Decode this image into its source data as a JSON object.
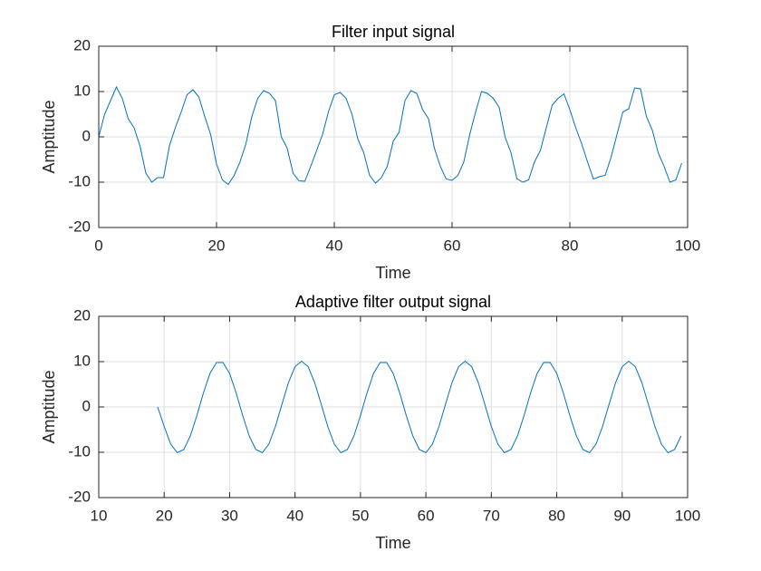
{
  "chart_data": [
    {
      "type": "line",
      "title": "Filter input signal",
      "xlabel": "Time",
      "ylabel": "Amptitude",
      "x": [
        0,
        1,
        2,
        3,
        4,
        5,
        6,
        7,
        8,
        9,
        10,
        11,
        12,
        13,
        14,
        15,
        16,
        17,
        18,
        19,
        20,
        21,
        22,
        23,
        24,
        25,
        26,
        27,
        28,
        29,
        30,
        31,
        32,
        33,
        34,
        35,
        36,
        37,
        38,
        39,
        40,
        41,
        42,
        43,
        44,
        45,
        46,
        47,
        48,
        49,
        50,
        51,
        52,
        53,
        54,
        55,
        56,
        57,
        58,
        59,
        60,
        61,
        62,
        63,
        64,
        65,
        66,
        67,
        68,
        69,
        70,
        71,
        72,
        73,
        74,
        75,
        76,
        77,
        78,
        79,
        80,
        81,
        82,
        83,
        84,
        85,
        86,
        87,
        88,
        89,
        90,
        91,
        92,
        93,
        94,
        95,
        96,
        97,
        98,
        99
      ],
      "series": [
        {
          "color": "#0072bd",
          "values": [
            0,
            5,
            8,
            11,
            8.5,
            4,
            2,
            -2,
            -8,
            -10,
            -9,
            -9,
            -2,
            2,
            5.5,
            9.3,
            10.4,
            8.8,
            4.5,
            0.5,
            -6,
            -9.5,
            -10.5,
            -8.5,
            -5.5,
            -1.5,
            4.5,
            8.5,
            10.2,
            9.6,
            8,
            0,
            -2.5,
            -8,
            -9.7,
            -9.8,
            -6.5,
            -3,
            0.5,
            5.5,
            9.3,
            9.8,
            8.5,
            5,
            -0.5,
            -3.5,
            -8.5,
            -10.2,
            -9,
            -6.5,
            -1,
            1,
            8,
            10.2,
            9.6,
            6,
            4,
            -2.5,
            -6.5,
            -9.3,
            -9.6,
            -8.5,
            -5.5,
            0.5,
            5.5,
            10,
            9.6,
            8.5,
            6.5,
            0,
            -3.5,
            -9.2,
            -10,
            -9.5,
            -5.5,
            -3,
            2,
            7,
            8.5,
            9.5,
            6,
            2,
            -1.5,
            -5.5,
            -9.3,
            -8.8,
            -8.5,
            -4.5,
            0.5,
            5.5,
            6.2,
            10.8,
            10.6,
            4.5,
            1.5,
            -3.5,
            -6.5,
            -10,
            -9.5,
            -5.8
          ]
        }
      ],
      "xlim": [
        0,
        100
      ],
      "ylim": [
        -20,
        20
      ],
      "xticks": [
        0,
        20,
        40,
        60,
        80,
        100
      ],
      "yticks": [
        -20,
        -10,
        0,
        10,
        20
      ],
      "grid": true
    },
    {
      "type": "line",
      "title": "Adaptive filter output signal",
      "xlabel": "Time",
      "ylabel": "Amptitude",
      "x": [
        19,
        20,
        21,
        22,
        23,
        24,
        25,
        26,
        27,
        28,
        29,
        30,
        31,
        32,
        33,
        34,
        35,
        36,
        37,
        38,
        39,
        40,
        41,
        42,
        43,
        44,
        45,
        46,
        47,
        48,
        49,
        50,
        51,
        52,
        53,
        54,
        55,
        56,
        57,
        58,
        59,
        60,
        61,
        62,
        63,
        64,
        65,
        66,
        67,
        68,
        69,
        70,
        71,
        72,
        73,
        74,
        75,
        76,
        77,
        78,
        79,
        80,
        81,
        82,
        83,
        84,
        85,
        86,
        87,
        88,
        89,
        90,
        91,
        92,
        93,
        94,
        95,
        96,
        97,
        98,
        99
      ],
      "series": [
        {
          "color": "#0072bd",
          "values": [
            0,
            -4.3,
            -8.2,
            -10.1,
            -9.4,
            -6.4,
            -1.9,
            3.1,
            7.4,
            9.8,
            9.8,
            7.4,
            3.1,
            -1.9,
            -6.4,
            -9.4,
            -10.1,
            -8.2,
            -4.3,
            0.6,
            5.4,
            8.9,
            10.1,
            8.9,
            5.4,
            0.6,
            -4.3,
            -8.2,
            -10.1,
            -9.4,
            -6.4,
            -1.9,
            3.1,
            7.4,
            9.8,
            9.8,
            7.4,
            3.1,
            -1.9,
            -6.4,
            -9.4,
            -10.1,
            -8.2,
            -4.3,
            0.6,
            5.4,
            8.9,
            10.1,
            8.9,
            5.4,
            0.6,
            -4.3,
            -8.2,
            -10.1,
            -9.4,
            -6.4,
            -1.9,
            3.1,
            7.4,
            9.8,
            9.8,
            7.4,
            3.1,
            -1.9,
            -6.4,
            -9.4,
            -10.1,
            -8.2,
            -4.3,
            0.6,
            5.4,
            8.9,
            10.1,
            8.9,
            5.4,
            0.6,
            -4.3,
            -8.2,
            -10.1,
            -9.4,
            -6.4
          ]
        }
      ],
      "xlim": [
        10,
        100
      ],
      "ylim": [
        -20,
        20
      ],
      "xticks": [
        10,
        20,
        30,
        40,
        50,
        60,
        70,
        80,
        90,
        100
      ],
      "yticks": [
        -20,
        -10,
        0,
        10,
        20
      ],
      "grid": true
    }
  ]
}
